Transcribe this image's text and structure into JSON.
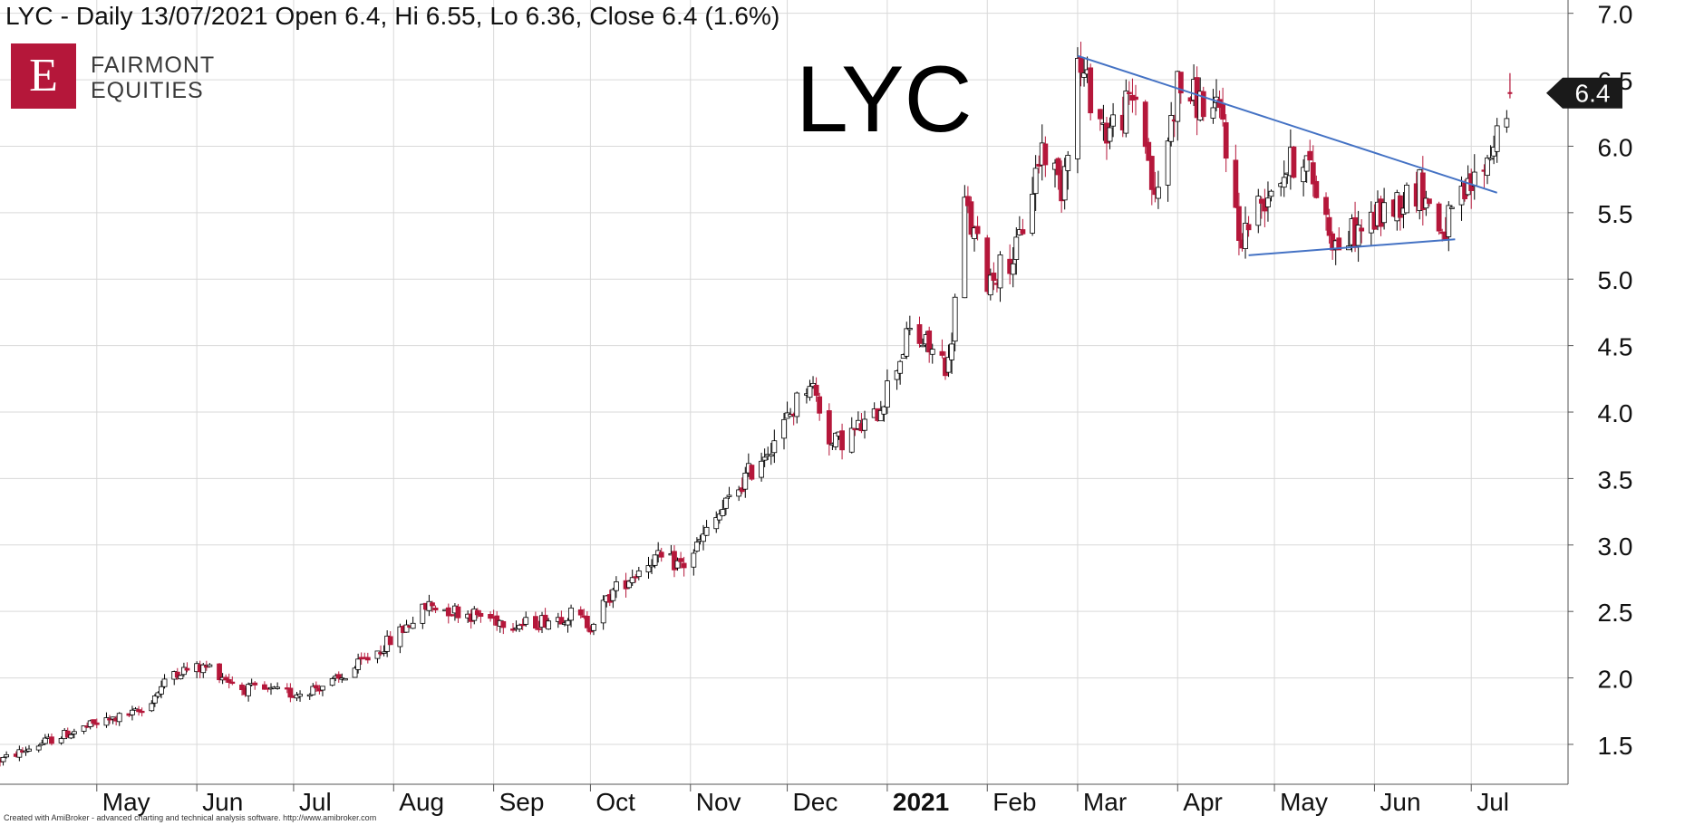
{
  "header": {
    "title": "LYC - Daily 13/07/2021 Open 6.4, Hi 6.55, Lo 6.36, Close 6.4 (1.6%)"
  },
  "logo": {
    "letter": "E",
    "line1": "FAIRMONT",
    "line2": "EQUITIES",
    "color": "#b5173a"
  },
  "big_label": "LYC",
  "footer": "Created with AmiBroker - advanced charting and technical analysis software. http://www.amibroker.com",
  "colors": {
    "down_candle": "#b5173a",
    "up_candle": "#ffffff",
    "trendline": "#4472c4",
    "grid": "#d9d9d9"
  },
  "chart_data": {
    "type": "candlestick",
    "ylim": [
      1.2,
      7.1
    ],
    "yticks": [
      1.5,
      2.0,
      2.5,
      3.0,
      3.5,
      4.0,
      4.5,
      5.0,
      5.5,
      6.0,
      6.5,
      7.0
    ],
    "ytick_labels": [
      "1.5",
      "2.0",
      "2.5",
      "3.0",
      "3.5",
      "4.0",
      "4.5",
      "5.0",
      "5.5",
      "6.0",
      "6.5",
      "7.0"
    ],
    "x_start": "2020-04-01",
    "x_end": "2021-07-31",
    "month_ticks": [
      {
        "date": "2020-05-01",
        "label": "May",
        "bold": false
      },
      {
        "date": "2020-06-01",
        "label": "Jun",
        "bold": false
      },
      {
        "date": "2020-07-01",
        "label": "Jul",
        "bold": false
      },
      {
        "date": "2020-08-01",
        "label": "Aug",
        "bold": false
      },
      {
        "date": "2020-09-01",
        "label": "Sep",
        "bold": false
      },
      {
        "date": "2020-10-01",
        "label": "Oct",
        "bold": false
      },
      {
        "date": "2020-11-01",
        "label": "Nov",
        "bold": false
      },
      {
        "date": "2020-12-01",
        "label": "Dec",
        "bold": false
      },
      {
        "date": "2021-01-01",
        "label": "2021",
        "bold": true
      },
      {
        "date": "2021-02-01",
        "label": "Feb",
        "bold": false
      },
      {
        "date": "2021-03-01",
        "label": "Mar",
        "bold": false
      },
      {
        "date": "2021-04-01",
        "label": "Apr",
        "bold": false
      },
      {
        "date": "2021-05-01",
        "label": "May",
        "bold": false
      },
      {
        "date": "2021-06-01",
        "label": "Jun",
        "bold": false
      },
      {
        "date": "2021-07-01",
        "label": "Jul",
        "bold": false
      }
    ],
    "price_path": [
      {
        "date": "2020-04-01",
        "price": 1.38
      },
      {
        "date": "2020-04-15",
        "price": 1.52
      },
      {
        "date": "2020-04-30",
        "price": 1.65
      },
      {
        "date": "2020-05-15",
        "price": 1.75
      },
      {
        "date": "2020-05-25",
        "price": 2.05
      },
      {
        "date": "2020-06-05",
        "price": 2.08
      },
      {
        "date": "2020-06-15",
        "price": 1.92
      },
      {
        "date": "2020-07-01",
        "price": 1.88
      },
      {
        "date": "2020-07-15",
        "price": 1.98
      },
      {
        "date": "2020-08-01",
        "price": 2.3
      },
      {
        "date": "2020-08-12",
        "price": 2.55
      },
      {
        "date": "2020-08-25",
        "price": 2.48
      },
      {
        "date": "2020-09-10",
        "price": 2.4
      },
      {
        "date": "2020-09-25",
        "price": 2.48
      },
      {
        "date": "2020-10-01",
        "price": 2.4
      },
      {
        "date": "2020-10-08",
        "price": 2.65
      },
      {
        "date": "2020-10-20",
        "price": 2.9
      },
      {
        "date": "2020-10-30",
        "price": 2.85
      },
      {
        "date": "2020-11-15",
        "price": 3.4
      },
      {
        "date": "2020-11-30",
        "price": 3.9
      },
      {
        "date": "2020-12-08",
        "price": 4.25
      },
      {
        "date": "2020-12-15",
        "price": 3.75
      },
      {
        "date": "2020-12-28",
        "price": 3.95
      },
      {
        "date": "2021-01-08",
        "price": 4.6
      },
      {
        "date": "2021-01-20",
        "price": 4.35
      },
      {
        "date": "2021-01-25",
        "price": 5.55
      },
      {
        "date": "2021-02-01",
        "price": 5.0
      },
      {
        "date": "2021-02-10",
        "price": 5.2
      },
      {
        "date": "2021-02-18",
        "price": 6.0
      },
      {
        "date": "2021-02-24",
        "price": 5.7
      },
      {
        "date": "2021-03-01",
        "price": 6.62
      },
      {
        "date": "2021-03-10",
        "price": 6.1
      },
      {
        "date": "2021-03-20",
        "price": 6.4
      },
      {
        "date": "2021-03-25",
        "price": 5.55
      },
      {
        "date": "2021-04-01",
        "price": 6.45
      },
      {
        "date": "2021-04-15",
        "price": 6.2
      },
      {
        "date": "2021-04-20",
        "price": 5.3
      },
      {
        "date": "2021-05-01",
        "price": 5.75
      },
      {
        "date": "2021-05-10",
        "price": 5.95
      },
      {
        "date": "2021-05-20",
        "price": 5.25
      },
      {
        "date": "2021-06-01",
        "price": 5.45
      },
      {
        "date": "2021-06-15",
        "price": 5.7
      },
      {
        "date": "2021-06-22",
        "price": 5.35
      },
      {
        "date": "2021-07-01",
        "price": 5.7
      },
      {
        "date": "2021-07-06",
        "price": 5.9
      },
      {
        "date": "2021-07-13",
        "price": 6.4
      }
    ],
    "last_bar": {
      "date": "2021-07-13",
      "open": 6.4,
      "high": 6.55,
      "low": 6.36,
      "close": 6.4
    },
    "last_price_marker": {
      "value": 6.4,
      "label": "6.4"
    },
    "trendlines": [
      {
        "name": "upper",
        "points": [
          {
            "date": "2021-03-01",
            "price": 6.68
          },
          {
            "date": "2021-07-09",
            "price": 5.65
          }
        ]
      },
      {
        "name": "lower",
        "points": [
          {
            "date": "2021-04-23",
            "price": 5.18
          },
          {
            "date": "2021-06-26",
            "price": 5.3
          }
        ]
      }
    ]
  }
}
